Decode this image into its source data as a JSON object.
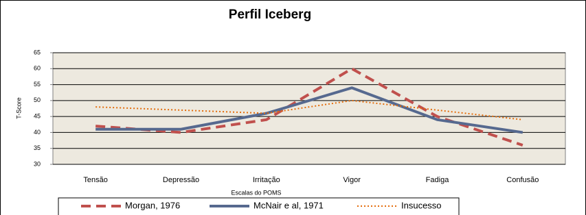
{
  "chart_data": {
    "type": "line",
    "title": "Perfil Iceberg",
    "x_label": "Escalas do POMS",
    "y_label": "T-Score",
    "categories": [
      "Tensão",
      "Depressão",
      "Irritação",
      "Vigor",
      "Fadiga",
      "Confusão"
    ],
    "series": [
      {
        "name": "Morgan, 1976",
        "color": "#c0504d",
        "dash": "14 8",
        "width": 4,
        "values": [
          42,
          40,
          44,
          60,
          45,
          36
        ]
      },
      {
        "name": "McNair e al, 1971",
        "color": "#56698f",
        "dash": "none",
        "width": 4,
        "values": [
          41,
          41,
          46,
          54,
          44,
          40
        ]
      },
      {
        "name": "Insucesso",
        "color": "#e46c0a",
        "dash": "2 3",
        "width": 2,
        "values": [
          48,
          47,
          46,
          50,
          47,
          44
        ]
      }
    ],
    "ylim": [
      30,
      65
    ],
    "yticks": [
      30,
      35,
      40,
      45,
      50,
      55,
      60,
      65
    ],
    "grid": true
  }
}
